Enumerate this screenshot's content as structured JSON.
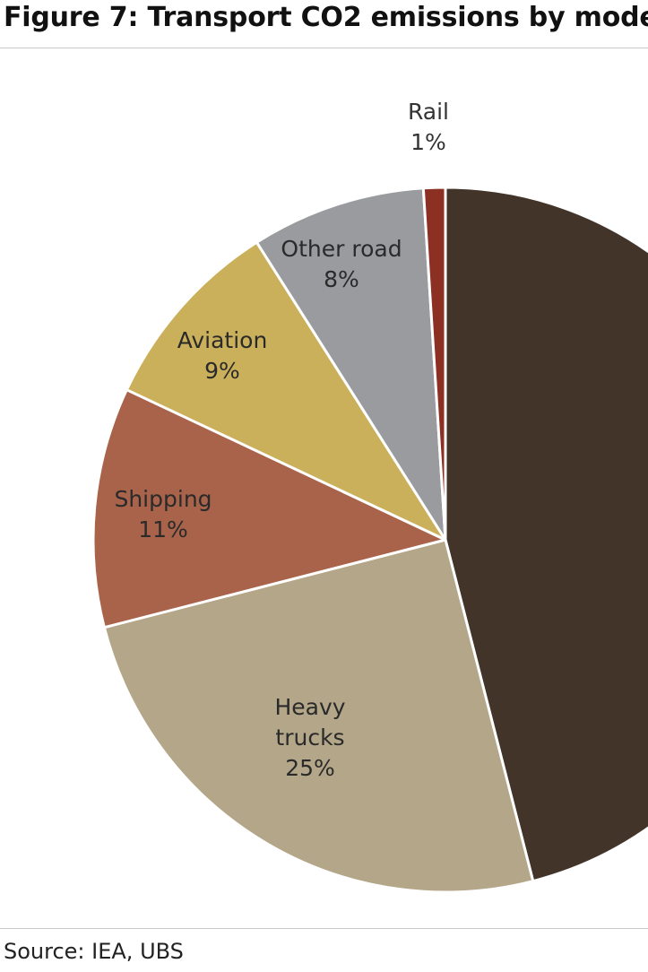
{
  "title": "Figure 7: Transport CO2 emissions by mode",
  "source": "Source: IEA, UBS",
  "chart_data": {
    "type": "pie",
    "title": "Figure 7: Transport CO2 emissions by mode",
    "start_angle_deg": 0,
    "direction": "clockwise",
    "slices": [
      {
        "label": "",
        "lines": [],
        "value": 46,
        "color": "#43342a"
      },
      {
        "label": "Heavy trucks",
        "lines": [
          "Heavy",
          "trucks",
          "25%"
        ],
        "value": 25,
        "color": "#b4a688"
      },
      {
        "label": "Shipping",
        "lines": [
          "Shipping",
          "11%"
        ],
        "value": 11,
        "color": "#a8634a"
      },
      {
        "label": "Aviation",
        "lines": [
          "Aviation",
          "9%"
        ],
        "value": 9,
        "color": "#cbb05b"
      },
      {
        "label": "Other road",
        "lines": [
          "Other road",
          "8%"
        ],
        "value": 8,
        "color": "#9a9b9f"
      },
      {
        "label": "Rail",
        "lines": [
          "Rail",
          "1%"
        ],
        "value": 1,
        "color": "#8b3022"
      }
    ]
  }
}
